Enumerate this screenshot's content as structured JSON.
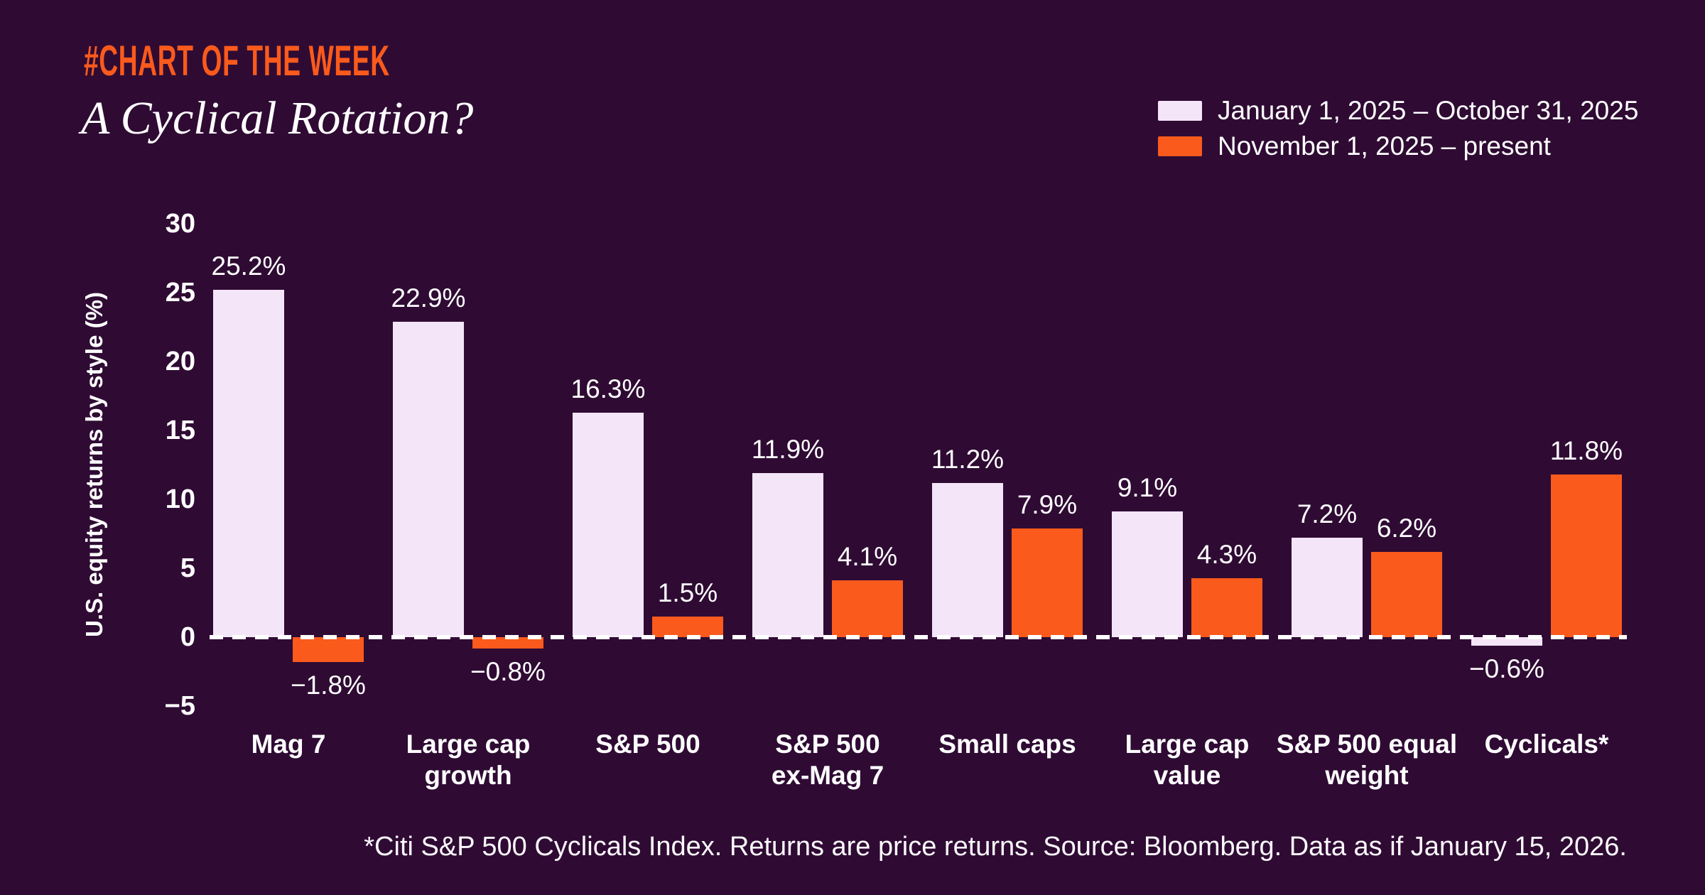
{
  "header": {
    "badge": "#CHART OF THE WEEK",
    "title": "A Cyclical Rotation?"
  },
  "legend": {
    "items": [
      {
        "label": "January 1, 2025 – October 31, 2025"
      },
      {
        "label": "November 1, 2025 – present"
      }
    ]
  },
  "footnote": "*Citi S&P 500 Cyclicals Index. Returns are price returns. Source: Bloomberg. Data as if January 15, 2026.",
  "colors": {
    "background": "#2F0B34",
    "accent_orange": "#FA5A1C",
    "bar_light": "#F4E5F8",
    "text": "#FFFFFF"
  },
  "chart_data": {
    "type": "bar",
    "title": "A Cyclical Rotation?",
    "ylabel": "U.S. equity returns by style (%)",
    "ylim": [
      -5,
      30
    ],
    "yticks": [
      30,
      25,
      20,
      15,
      10,
      5,
      0,
      -5
    ],
    "ytick_labels": [
      "30",
      "25",
      "20",
      "15",
      "10",
      "5",
      "0",
      "−5"
    ],
    "grid": false,
    "zero_line": "dashed-white",
    "legend_position": "top-right",
    "categories": [
      "Mag 7",
      "Large cap growth",
      "S&P 500",
      "S&P 500 ex-Mag 7",
      "Small caps",
      "Large cap value",
      "S&P 500 equal weight",
      "Cyclicals*"
    ],
    "category_lines": [
      [
        "Mag 7"
      ],
      [
        "Large cap",
        "growth"
      ],
      [
        "S&P 500"
      ],
      [
        "S&P 500",
        "ex-Mag 7"
      ],
      [
        "Small caps"
      ],
      [
        "Large cap",
        "value"
      ],
      [
        "S&P 500 equal",
        "weight"
      ],
      [
        "Cyclicals*"
      ]
    ],
    "series": [
      {
        "name": "January 1, 2025 – October 31, 2025",
        "color": "#F4E5F8",
        "values": [
          25.2,
          22.9,
          16.3,
          11.9,
          11.2,
          9.1,
          7.2,
          -0.6
        ],
        "labels": [
          "25.2%",
          "22.9%",
          "16.3%",
          "11.9%",
          "11.2%",
          "9.1%",
          "7.2%",
          "−0.6%"
        ]
      },
      {
        "name": "November 1, 2025 – present",
        "color": "#FA5A1C",
        "values": [
          -1.8,
          -0.8,
          1.5,
          4.1,
          7.9,
          4.3,
          6.2,
          11.8
        ],
        "labels": [
          "−1.8%",
          "−0.8%",
          "1.5%",
          "4.1%",
          "7.9%",
          "4.3%",
          "6.2%",
          "11.8%"
        ]
      }
    ]
  }
}
